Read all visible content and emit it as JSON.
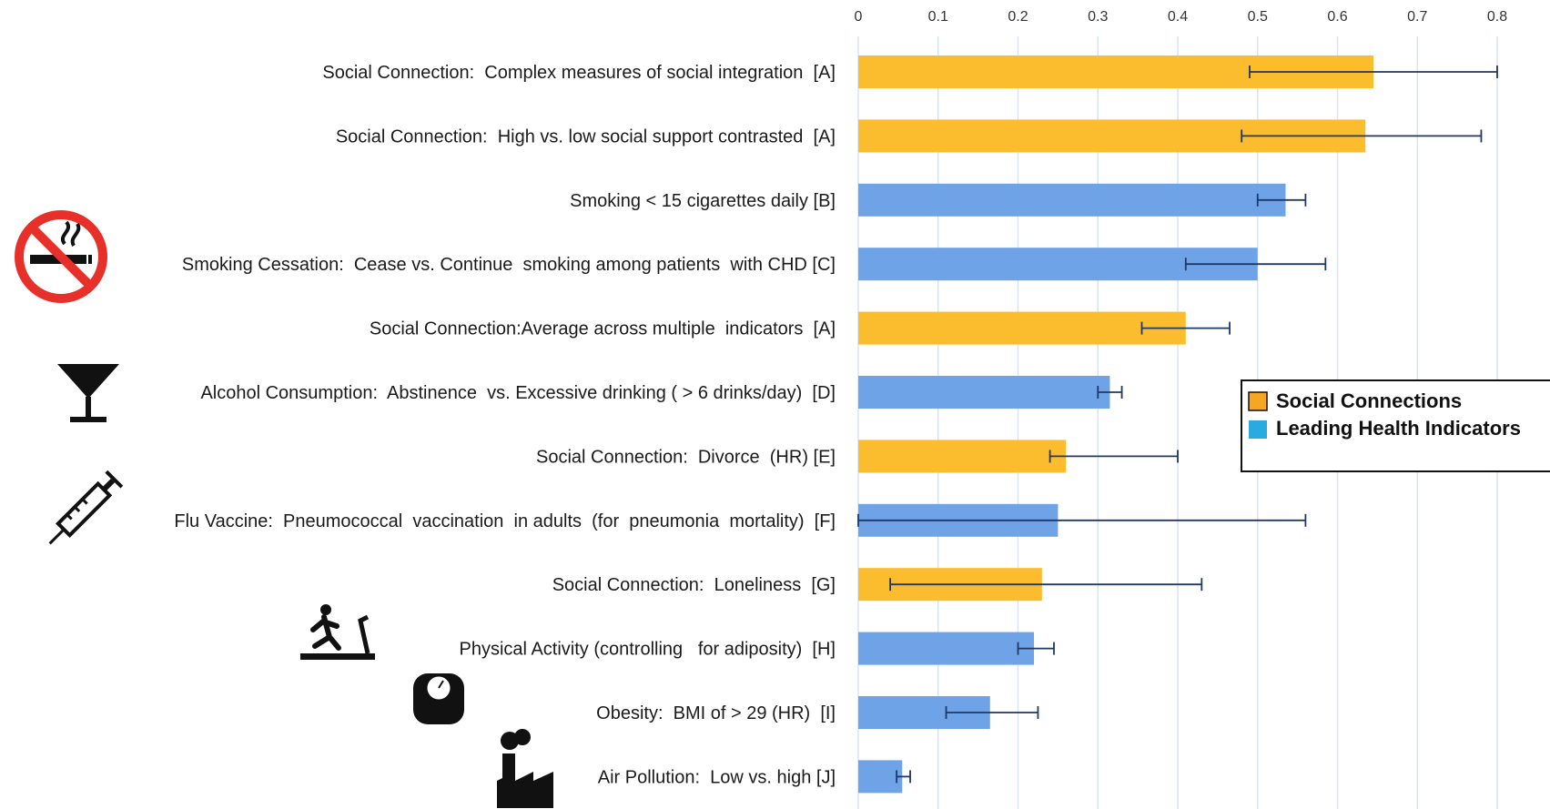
{
  "colors": {
    "social": "#FBBC2E",
    "health": "#6FA3E8",
    "error_bar": "#1F3864",
    "grid": "#D9E4F2",
    "legend_social": "#F5A623",
    "legend_health": "#29ABE2"
  },
  "icons": [
    "no-smoking-icon",
    "cocktail-glass-icon",
    "syringe-icon",
    "treadmill-runner-icon",
    "bathroom-scale-icon",
    "factory-icon"
  ],
  "chart_data": {
    "type": "bar",
    "orientation": "horizontal",
    "xlim": [
      0,
      0.8
    ],
    "xticks": [
      "0",
      "0.1",
      "0.2",
      "0.3",
      "0.4",
      "0.5",
      "0.6",
      "0.7",
      "0.8"
    ],
    "grid": true,
    "legend_position": "right",
    "series": [
      {
        "name": "Social Connections",
        "color": "#FBBC2E"
      },
      {
        "name": "Leading Health Indicators",
        "color": "#6FA3E8"
      }
    ],
    "bars": [
      {
        "label": "Social Connection:  Complex measures of social integration  [A]",
        "value": 0.645,
        "err_low": 0.49,
        "err_high": 0.8,
        "series": 0
      },
      {
        "label": "Social Connection:  High vs. low social support contrasted  [A]",
        "value": 0.635,
        "err_low": 0.48,
        "err_high": 0.78,
        "series": 0
      },
      {
        "label": "Smoking < 15 cigarettes daily [B]",
        "value": 0.535,
        "err_low": 0.5,
        "err_high": 0.56,
        "series": 1
      },
      {
        "label": "Smoking Cessation:  Cease vs. Continue  smoking among patients  with CHD [C]",
        "value": 0.5,
        "err_low": 0.41,
        "err_high": 0.585,
        "series": 1
      },
      {
        "label": "Social Connection:Average across multiple  indicators  [A]",
        "value": 0.41,
        "err_low": 0.355,
        "err_high": 0.465,
        "series": 0
      },
      {
        "label": "Alcohol Consumption:  Abstinence  vs. Excessive drinking ( > 6 drinks/day)  [D]",
        "value": 0.315,
        "err_low": 0.3,
        "err_high": 0.33,
        "series": 1
      },
      {
        "label": "Social Connection:  Divorce  (HR) [E]",
        "value": 0.26,
        "err_low": 0.24,
        "err_high": 0.4,
        "series": 0
      },
      {
        "label": "Flu Vaccine:  Pneumococcal  vaccination  in adults  (for  pneumonia  mortality)  [F]",
        "value": 0.25,
        "err_low": 0.0,
        "err_high": 0.56,
        "series": 1
      },
      {
        "label": "Social Connection:  Loneliness  [G]",
        "value": 0.23,
        "err_low": 0.04,
        "err_high": 0.43,
        "series": 0
      },
      {
        "label": "Physical Activity (controlling   for adiposity)  [H]",
        "value": 0.22,
        "err_low": 0.2,
        "err_high": 0.245,
        "series": 1
      },
      {
        "label": "Obesity:  BMI of > 29 (HR)  [I]",
        "value": 0.165,
        "err_low": 0.11,
        "err_high": 0.225,
        "series": 1
      },
      {
        "label": "Air Pollution:  Low vs. high [J]",
        "value": 0.055,
        "err_low": 0.048,
        "err_high": 0.065,
        "series": 1
      }
    ]
  }
}
